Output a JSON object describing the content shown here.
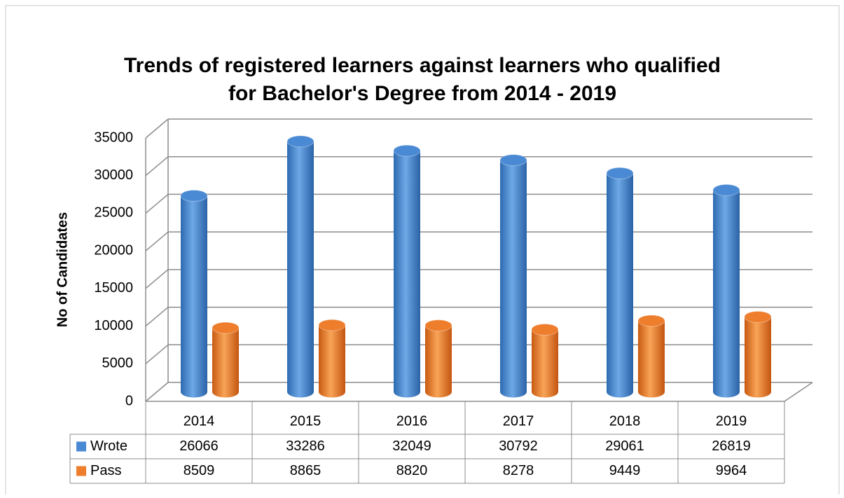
{
  "chart_data": {
    "type": "bar3d",
    "title": [
      "Trends of registered learners against learners who qualified",
      "for Bachelor's Degree from 2014 - 2019"
    ],
    "y_label": "No of Candidates",
    "categories": [
      "2014",
      "2015",
      "2016",
      "2017",
      "2018",
      "2019"
    ],
    "series": [
      {
        "name": "Wrote",
        "color": "#4a8ad4",
        "values": [
          26066,
          33286,
          32049,
          30792,
          29061,
          26819
        ]
      },
      {
        "name": "Pass",
        "color": "#ee7d2c",
        "values": [
          8509,
          8865,
          8820,
          8278,
          9449,
          9964
        ]
      }
    ],
    "ylim": [
      0,
      35000
    ],
    "yticks": [
      0,
      5000,
      10000,
      15000,
      20000,
      25000,
      30000,
      35000
    ],
    "grid": true
  }
}
